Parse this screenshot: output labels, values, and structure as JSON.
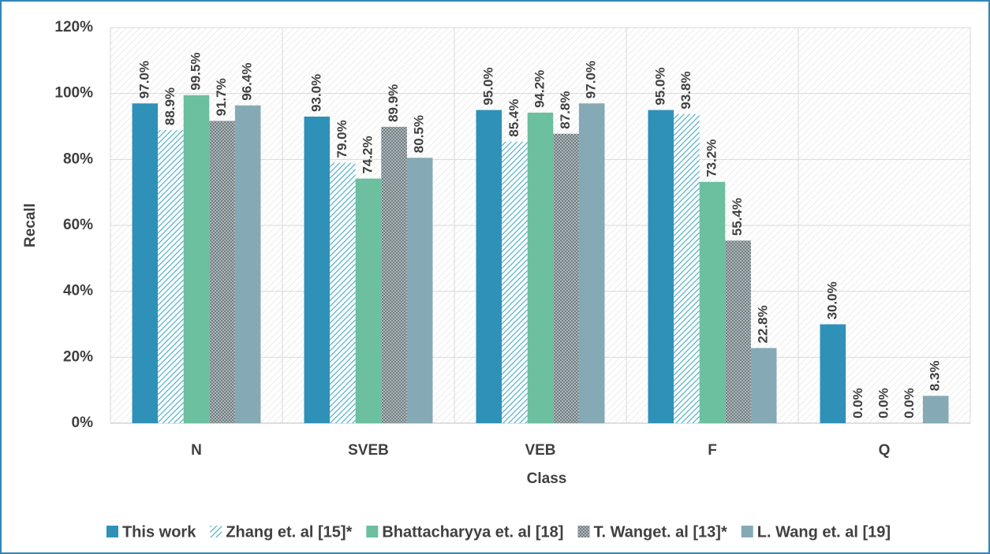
{
  "chart_data": {
    "type": "bar",
    "x_label": "Class",
    "y_label": "Recall",
    "categories": [
      "N",
      "SVEB",
      "VEB",
      "F",
      "Q"
    ],
    "series": [
      {
        "name": "This work",
        "color": "#2f91b8",
        "values": [
          97.0,
          93.0,
          95.0,
          95.0,
          30.0
        ],
        "value_labels": [
          "97.0%",
          "93.0%",
          "95.0%",
          "95.0%",
          "30.0%"
        ]
      },
      {
        "name": "Zhang et. al [15]*",
        "color": "#4fb0c6",
        "pattern": "diagonal",
        "values": [
          88.9,
          79.0,
          85.4,
          93.8,
          0.0
        ],
        "value_labels": [
          "88.9%",
          "79.0%",
          "85.4%",
          "93.8%",
          "0.0%"
        ]
      },
      {
        "name": "Bhattacharyya et. al [18]",
        "color": "#6cbf9f",
        "values": [
          99.5,
          74.2,
          94.2,
          73.2,
          0.0
        ],
        "value_labels": [
          "99.5%",
          "74.2%",
          "94.2%",
          "73.2%",
          "0.0%"
        ]
      },
      {
        "name": "T. Wanget. al [13]*",
        "color": "#6f7d82",
        "pattern": "checker",
        "values": [
          91.7,
          89.9,
          87.8,
          55.4,
          0.0
        ],
        "value_labels": [
          "91.7%",
          "89.9%",
          "87.8%",
          "55.4%",
          "0.0%"
        ]
      },
      {
        "name": "L. Wang et. al [19]",
        "color": "#85aab5",
        "values": [
          96.4,
          80.5,
          97.0,
          22.8,
          8.3
        ],
        "value_labels": [
          "96.4%",
          "80.5%",
          "97.0%",
          "22.8%",
          "8.3%"
        ]
      }
    ],
    "ylim": [
      0,
      120
    ],
    "yticks": [
      {
        "value": 0,
        "label": "0%"
      },
      {
        "value": 20,
        "label": "20%"
      },
      {
        "value": 40,
        "label": "40%"
      },
      {
        "value": 60,
        "label": "60%"
      },
      {
        "value": 80,
        "label": "80%"
      },
      {
        "value": 100,
        "label": "100%"
      },
      {
        "value": 120,
        "label": "120%"
      }
    ],
    "grid": true,
    "legend": "bottom"
  }
}
